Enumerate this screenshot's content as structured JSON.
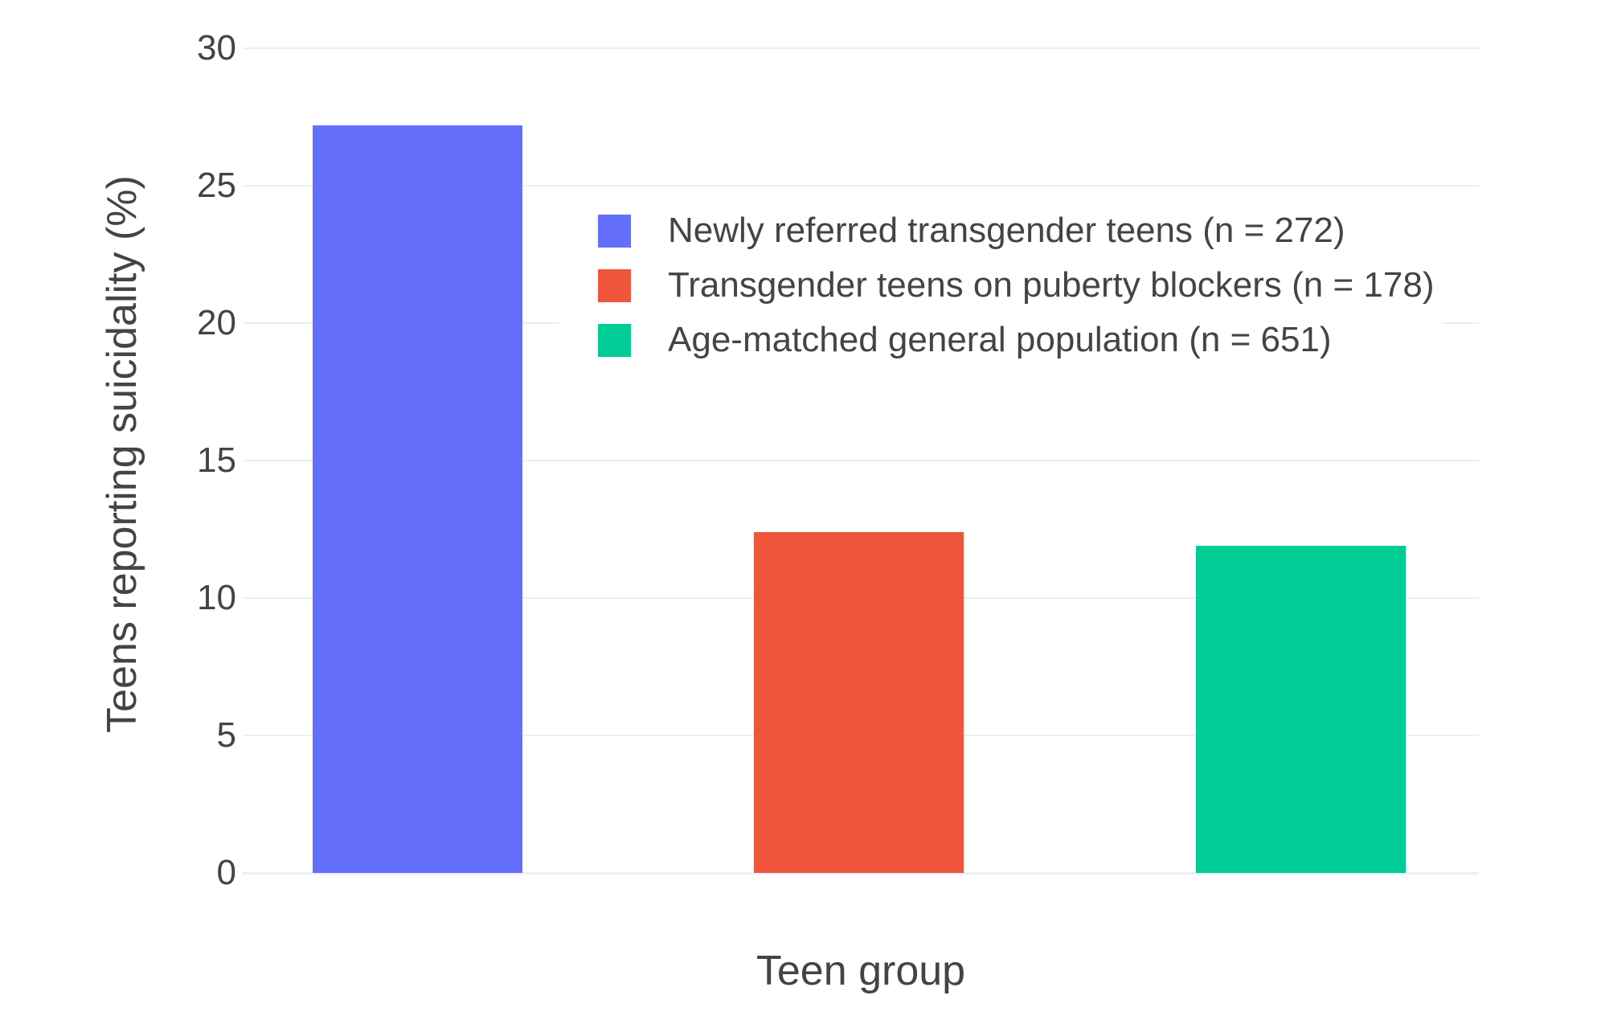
{
  "figure": {
    "background": "#ffffff",
    "text_color": "#444444",
    "gridline_color": "#E9EEF8"
  },
  "chart_data": {
    "type": "bar",
    "title": "",
    "xlabel": "Teen group",
    "ylabel": "Teens reporting suicidality (%)",
    "ylim": [
      0,
      30
    ],
    "yticks": [
      0,
      5,
      10,
      15,
      20,
      25,
      30
    ],
    "grid": true,
    "legend_position": "inside top-center, overlapping plot, white background, no border",
    "x_tick_labels": [],
    "series": [
      {
        "name": "Newly referred transgender teens (n = 272)",
        "value": 27.2,
        "color": "#636EFA"
      },
      {
        "name": "Transgender teens on puberty blockers (n = 178)",
        "value": 12.4,
        "color": "#EF553B"
      },
      {
        "name": "Age-matched general population (n = 651)",
        "value": 11.9,
        "color": "#00CC96"
      }
    ]
  }
}
